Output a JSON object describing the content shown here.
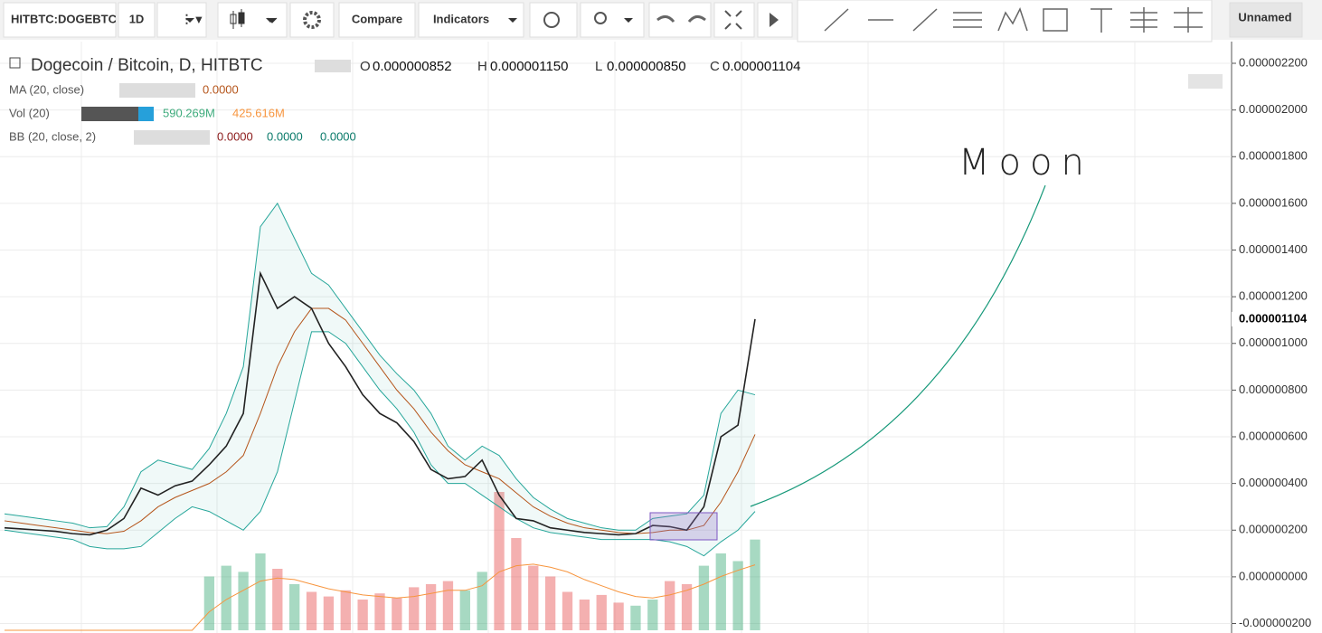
{
  "toolbar": {
    "symbol": "HITBTC:DOGEBTC",
    "interval": "1D",
    "compare": "Compare",
    "indicators": "Indicators",
    "layout_name": "Unnamed"
  },
  "legend": {
    "main": {
      "title": "Dogecoin / Bitcoin, D, HITBTC",
      "o_key": "O",
      "o": "0.000000852",
      "h_key": "H",
      "h": "0.000001150",
      "l_key": "L",
      "l": "0.000000850",
      "c_key": "C",
      "c": "0.000001104"
    },
    "ma": {
      "name": "MA (20, close)",
      "value": "0.0000"
    },
    "vol": {
      "name": "Vol (20)",
      "value": "590.269M",
      "ma_value": "425.616M"
    },
    "bb": {
      "name": "BB (20, close, 2)",
      "basis": "0.0000",
      "upper": "0.0000",
      "lower": "0.0000"
    }
  },
  "chart_data": {
    "type": "line",
    "annotation": "Moon",
    "last_price_label": {
      "value": 1.104e-06,
      "label": "0.000001104"
    },
    "ylim": [
      -2.29e-07,
      2.293e-06
    ],
    "yticks": [
      {
        "value": -2e-07,
        "label": "-0.000000200"
      },
      {
        "value": 0,
        "label": "0.000000000"
      },
      {
        "value": 2e-07,
        "label": "0.000000200"
      },
      {
        "value": 4e-07,
        "label": "0.000000400"
      },
      {
        "value": 6e-07,
        "label": "0.000000600"
      },
      {
        "value": 8e-07,
        "label": "0.000000800"
      },
      {
        "value": 1e-06,
        "label": "0.000001000"
      },
      {
        "value": 1.2e-06,
        "label": "0.000001200"
      },
      {
        "value": 1.4e-06,
        "label": "0.000001400"
      },
      {
        "value": 1.6e-06,
        "label": "0.000001600"
      },
      {
        "value": 1.8e-06,
        "label": "0.000001800"
      },
      {
        "value": 2e-06,
        "label": "0.000002000"
      },
      {
        "value": 2.2e-06,
        "label": "0.000002200"
      }
    ],
    "grid": true,
    "series": [
      {
        "name": "Dogecoin / Bitcoin",
        "color": "#222222",
        "values": [
          2.1e-07,
          2.05e-07,
          2e-07,
          1.95e-07,
          1.85e-07,
          1.8e-07,
          2e-07,
          2.5e-07,
          3.8e-07,
          3.5e-07,
          3.9e-07,
          4.1e-07,
          4.8e-07,
          5.6e-07,
          7e-07,
          1.3e-06,
          1.15e-06,
          1.2e-06,
          1.15e-06,
          1e-06,
          9e-07,
          7.8e-07,
          7e-07,
          6.6e-07,
          5.8e-07,
          4.6e-07,
          4.2e-07,
          4.3e-07,
          5e-07,
          3.5e-07,
          2.5e-07,
          2.4e-07,
          2.1e-07,
          2e-07,
          1.9e-07,
          1.85e-07,
          1.8e-07,
          1.85e-07,
          2.2e-07,
          2.15e-07,
          2e-07,
          3e-07,
          6e-07,
          6.5e-07,
          1.104e-06
        ]
      },
      {
        "name": "MA (20, close)",
        "color": "#b5551b",
        "values": [
          2.4e-07,
          2.3e-07,
          2.2e-07,
          2.1e-07,
          2e-07,
          1.9e-07,
          1.85e-07,
          1.95e-07,
          2.4e-07,
          3e-07,
          3.4e-07,
          3.7e-07,
          4e-07,
          4.5e-07,
          5.2e-07,
          7e-07,
          9e-07,
          1.05e-06,
          1.15e-06,
          1.15e-06,
          1.1e-06,
          1e-06,
          9e-07,
          8e-07,
          7.2e-07,
          6.2e-07,
          5.4e-07,
          4.8e-07,
          4.5e-07,
          4.2e-07,
          3.6e-07,
          3e-07,
          2.6e-07,
          2.3e-07,
          2.1e-07,
          2e-07,
          1.9e-07,
          1.85e-07,
          1.9e-07,
          2e-07,
          2e-07,
          2.2e-07,
          3.2e-07,
          4.5e-07,
          6.1e-07
        ]
      },
      {
        "name": "BB upper",
        "color": "#26a69a",
        "values": [
          2.7e-07,
          2.6e-07,
          2.5e-07,
          2.4e-07,
          2.3e-07,
          2.1e-07,
          2.15e-07,
          3e-07,
          4.5e-07,
          5e-07,
          4.8e-07,
          4.6e-07,
          5.5e-07,
          7e-07,
          9e-07,
          1.5e-06,
          1.6e-06,
          1.45e-06,
          1.3e-06,
          1.25e-06,
          1.15e-06,
          1.05e-06,
          9.5e-07,
          8.7e-07,
          8e-07,
          7e-07,
          5.6e-07,
          5e-07,
          5.6e-07,
          5.2e-07,
          4.2e-07,
          3.4e-07,
          2.9e-07,
          2.5e-07,
          2.3e-07,
          2.1e-07,
          2e-07,
          2e-07,
          2.5e-07,
          2.6e-07,
          2.7e-07,
          3.5e-07,
          7e-07,
          8e-07,
          7.8e-07
        ]
      },
      {
        "name": "BB lower",
        "color": "#26a69a",
        "values": [
          2e-07,
          1.9e-07,
          1.8e-07,
          1.7e-07,
          1.6e-07,
          1.3e-07,
          1.2e-07,
          1.2e-07,
          1.3e-07,
          1.9e-07,
          2.5e-07,
          3e-07,
          2.8e-07,
          2.4e-07,
          2e-07,
          2.8e-07,
          4.5e-07,
          7.5e-07,
          1.05e-06,
          1.05e-06,
          1e-06,
          9e-07,
          8e-07,
          7.2e-07,
          6.2e-07,
          4.8e-07,
          4e-07,
          4e-07,
          3.5e-07,
          3e-07,
          2.5e-07,
          2.1e-07,
          1.9e-07,
          1.8e-07,
          1.7e-07,
          1.6e-07,
          1.6e-07,
          1.6e-07,
          1.6e-07,
          1.5e-07,
          1.3e-07,
          9e-08,
          1.5e-07,
          2e-07,
          2.8e-07
        ]
      }
    ],
    "volume": {
      "vlim": [
        0,
        1000
      ],
      "values": [
        0,
        0,
        0,
        0,
        0,
        0,
        0,
        0,
        0,
        0,
        0,
        0,
        350,
        420,
        380,
        500,
        400,
        300,
        250,
        220,
        260,
        200,
        240,
        210,
        280,
        300,
        320,
        260,
        380,
        900,
        600,
        420,
        350,
        250,
        200,
        230,
        180,
        160,
        200,
        320,
        300,
        420,
        500,
        450,
        590.269
      ],
      "ma_values": [
        0,
        0,
        0,
        0,
        0,
        0,
        0,
        0,
        0,
        0,
        0,
        0,
        120,
        200,
        260,
        320,
        340,
        330,
        300,
        270,
        250,
        230,
        220,
        210,
        220,
        240,
        260,
        260,
        290,
        380,
        420,
        430,
        410,
        380,
        330,
        290,
        250,
        220,
        210,
        230,
        260,
        300,
        350,
        390,
        425.616
      ]
    }
  }
}
